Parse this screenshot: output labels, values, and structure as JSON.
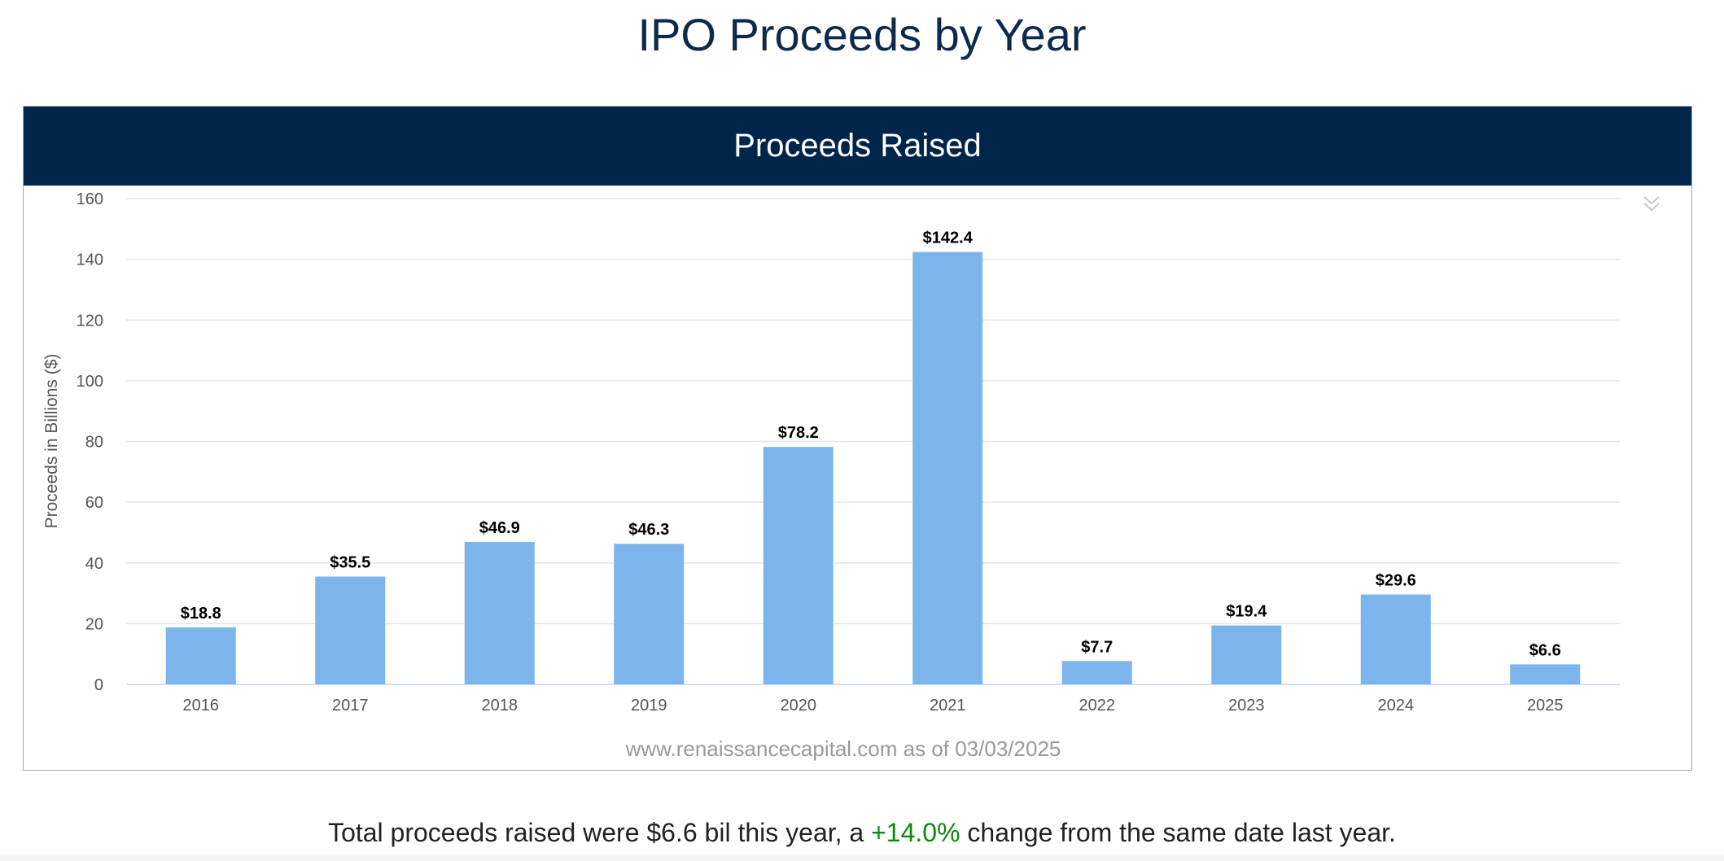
{
  "page": {
    "title": "IPO Proceeds by Year"
  },
  "chart_data": {
    "type": "bar",
    "title": "Proceeds Raised",
    "categories": [
      "2016",
      "2017",
      "2018",
      "2019",
      "2020",
      "2021",
      "2022",
      "2023",
      "2024",
      "2025"
    ],
    "values": [
      18.8,
      35.5,
      46.9,
      46.3,
      78.2,
      142.4,
      7.7,
      19.4,
      29.6,
      6.6
    ],
    "data_labels": [
      "$18.8",
      "$35.5",
      "$46.9",
      "$46.3",
      "$78.2",
      "$142.4",
      "$7.7",
      "$19.4",
      "$29.6",
      "$6.6"
    ],
    "xlabel": "",
    "ylabel": "Proceeds in Billions ($)",
    "ylim": [
      0,
      160
    ],
    "yticks": [
      0,
      20,
      40,
      60,
      80,
      100,
      120,
      140,
      160
    ],
    "grid": true,
    "source_note": "www.renaissancecapital.com as of 03/03/2025",
    "colors": {
      "bar": "#7cb5ec",
      "header": "#00254a",
      "grid": "#e6e6e6",
      "axis_text": "#555555"
    }
  },
  "summary": {
    "prefix": "Total proceeds raised were $6.6 bil this year, a ",
    "change": "+14.0%",
    "suffix": " change from the same date last year.",
    "change_color": "#0a8a0a"
  },
  "icons": {
    "menu": "chevron-double-down-icon"
  }
}
